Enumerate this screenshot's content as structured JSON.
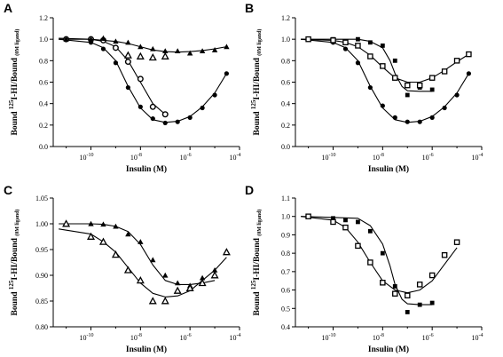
{
  "chart_data": [
    {
      "type": "scatter",
      "panel": "A",
      "xlabel": "Insulin (M)",
      "ylabel": {
        "pre": "Bound ",
        "sup": "125",
        "mid": "I-HI/Bound ",
        "sub": "(0M ligand)"
      },
      "x_scale": "log",
      "xlim": [
        3e-12,
        0.0001
      ],
      "ylim": [
        0.0,
        1.2
      ],
      "x_ticks": [
        {
          "value": 1e-10,
          "label": "10",
          "exp": "-10"
        },
        {
          "value": 1e-08,
          "label": "10",
          "exp": "-8"
        },
        {
          "value": 1e-06,
          "label": "10",
          "exp": "-6"
        },
        {
          "value": 0.0001,
          "label": "10",
          "exp": "-4"
        }
      ],
      "y_ticks": [
        "0.0",
        "0.2",
        "0.4",
        "0.6",
        "0.8",
        "1.0",
        "1.2"
      ],
      "series": [
        {
          "marker": "filled-circle",
          "x": [
            1e-11,
            1e-10,
            3.16e-10,
            1e-09,
            3.16e-09,
            1e-08,
            3.16e-08,
            1e-07,
            3.16e-07,
            1e-06,
            3.16e-06,
            1e-05,
            3e-05
          ],
          "y": [
            1.0,
            0.97,
            0.91,
            0.78,
            0.55,
            0.37,
            0.26,
            0.22,
            0.23,
            0.27,
            0.36,
            0.48,
            0.68
          ],
          "fit": [
            [
              5e-12,
              1.0
            ],
            [
              1e-10,
              0.97
            ],
            [
              3.16e-10,
              0.92
            ],
            [
              1e-09,
              0.8
            ],
            [
              3.16e-09,
              0.56
            ],
            [
              1e-08,
              0.36
            ],
            [
              3.16e-08,
              0.25
            ],
            [
              1e-07,
              0.225
            ],
            [
              3.16e-07,
              0.235
            ],
            [
              1e-06,
              0.28
            ],
            [
              3.16e-06,
              0.37
            ],
            [
              1e-05,
              0.5
            ],
            [
              3e-05,
              0.68
            ]
          ]
        },
        {
          "marker": "open-circle",
          "x": [
            1e-11,
            1e-10,
            3.16e-10,
            1e-09,
            3.16e-09,
            1e-08,
            3.16e-08,
            1e-07
          ],
          "y": [
            1.0,
            1.0,
            0.99,
            0.92,
            0.79,
            0.63,
            0.37,
            0.3
          ],
          "fit": [
            [
              5e-12,
              1.0
            ],
            [
              1e-10,
              1.0
            ],
            [
              3.16e-10,
              0.98
            ],
            [
              1e-09,
              0.93
            ],
            [
              3.16e-09,
              0.8
            ],
            [
              1e-08,
              0.6
            ],
            [
              3.16e-08,
              0.4
            ],
            [
              1e-07,
              0.3
            ]
          ]
        },
        {
          "marker": "filled-triangle",
          "x": [
            1e-11,
            1e-10,
            3.16e-10,
            1e-09,
            3.16e-09,
            1e-08,
            3.16e-08,
            1e-07,
            3.16e-07,
            1e-06,
            3.16e-06,
            1e-05,
            3e-05
          ],
          "y": [
            1.0,
            1.0,
            1.01,
            0.98,
            0.97,
            0.93,
            0.91,
            0.89,
            0.89,
            0.87,
            0.89,
            0.9,
            0.93
          ],
          "fit": [
            [
              5e-12,
              1.01
            ],
            [
              1e-10,
              1.0
            ],
            [
              3.16e-10,
              0.99
            ],
            [
              1e-09,
              0.98
            ],
            [
              3.16e-09,
              0.96
            ],
            [
              1e-08,
              0.93
            ],
            [
              3.16e-08,
              0.9
            ],
            [
              1e-07,
              0.885
            ],
            [
              3.16e-07,
              0.88
            ],
            [
              1e-06,
              0.885
            ],
            [
              3.16e-06,
              0.895
            ],
            [
              1e-05,
              0.91
            ],
            [
              3e-05,
              0.93
            ]
          ]
        },
        {
          "marker": "open-triangle",
          "x": [
            3.16e-09,
            1e-08,
            3.16e-08,
            1e-07
          ],
          "y": [
            0.85,
            0.84,
            0.83,
            0.84
          ],
          "fit": null
        }
      ]
    },
    {
      "type": "scatter",
      "panel": "B",
      "xlabel": "Insulin (M)",
      "ylabel": {
        "pre": "Bound ",
        "sup": "125",
        "mid": "I-HI/Bound ",
        "sub": "(0M ligand)"
      },
      "x_scale": "log",
      "xlim": [
        3e-12,
        0.0001
      ],
      "ylim": [
        0.0,
        1.2
      ],
      "x_ticks": [
        {
          "value": 1e-10,
          "label": "10",
          "exp": "-10"
        },
        {
          "value": 1e-08,
          "label": "10",
          "exp": "-8"
        },
        {
          "value": 1e-06,
          "label": "10",
          "exp": "-6"
        },
        {
          "value": 0.0001,
          "label": "10",
          "exp": "-4"
        }
      ],
      "y_ticks": [
        "0.0",
        "0.2",
        "0.4",
        "0.6",
        "0.8",
        "1.0",
        "1.2"
      ],
      "series": [
        {
          "marker": "filled-circle",
          "x": [
            1e-11,
            1e-10,
            3.16e-10,
            1e-09,
            3.16e-09,
            1e-08,
            3.16e-08,
            1e-07,
            3.16e-07,
            1e-06,
            3.16e-06,
            1e-05,
            3e-05
          ],
          "y": [
            1.0,
            0.97,
            0.91,
            0.78,
            0.55,
            0.38,
            0.27,
            0.23,
            0.23,
            0.27,
            0.36,
            0.48,
            0.68
          ],
          "fit": [
            [
              5e-12,
              1.0
            ],
            [
              1e-10,
              0.97
            ],
            [
              3.16e-10,
              0.92
            ],
            [
              1e-09,
              0.8
            ],
            [
              3.16e-09,
              0.56
            ],
            [
              1e-08,
              0.36
            ],
            [
              3.16e-08,
              0.25
            ],
            [
              1e-07,
              0.225
            ],
            [
              3.16e-07,
              0.235
            ],
            [
              1e-06,
              0.28
            ],
            [
              3.16e-06,
              0.37
            ],
            [
              1e-05,
              0.5
            ],
            [
              3e-05,
              0.68
            ]
          ]
        },
        {
          "marker": "filled-square",
          "x": [
            1e-11,
            1e-10,
            1e-09,
            3.16e-09,
            1e-08,
            3.16e-08,
            1e-07,
            3.16e-07,
            1e-06
          ],
          "y": [
            1.0,
            1.0,
            1.0,
            0.97,
            0.94,
            0.8,
            0.48,
            0.55,
            0.53
          ],
          "fit": [
            [
              5e-12,
              1.0
            ],
            [
              1e-09,
              1.0
            ],
            [
              3.16e-09,
              0.98
            ],
            [
              1e-08,
              0.92
            ],
            [
              2e-08,
              0.8
            ],
            [
              3.16e-08,
              0.68
            ],
            [
              6e-08,
              0.56
            ],
            [
              1e-07,
              0.52
            ],
            [
              3.16e-07,
              0.515
            ],
            [
              1e-06,
              0.515
            ]
          ]
        },
        {
          "marker": "open-square",
          "x": [
            1e-11,
            1e-10,
            3.16e-10,
            1e-09,
            3.16e-09,
            1e-08,
            3.16e-08,
            1e-07,
            3.16e-07,
            1e-06,
            3.16e-06,
            1e-05,
            3e-05
          ],
          "y": [
            1.0,
            0.99,
            0.97,
            0.94,
            0.84,
            0.75,
            0.64,
            0.57,
            0.57,
            0.64,
            0.7,
            0.8,
            0.86
          ],
          "fit": [
            [
              5e-12,
              1.0
            ],
            [
              1e-10,
              0.99
            ],
            [
              3.16e-10,
              0.97
            ],
            [
              1e-09,
              0.93
            ],
            [
              3.16e-09,
              0.85
            ],
            [
              1e-08,
              0.74
            ],
            [
              3.16e-08,
              0.64
            ],
            [
              1e-07,
              0.6
            ],
            [
              3.16e-07,
              0.6
            ],
            [
              1e-06,
              0.64
            ],
            [
              3.16e-06,
              0.71
            ],
            [
              1e-05,
              0.79
            ],
            [
              3e-05,
              0.86
            ]
          ]
        }
      ]
    },
    {
      "type": "scatter",
      "panel": "C",
      "xlabel": "Insulin (M)",
      "ylabel": {
        "pre": "Bound ",
        "sup": "125",
        "mid": "I-HI/Bound ",
        "sub": "(0M ligand)"
      },
      "x_scale": "log",
      "xlim": [
        3e-12,
        0.0001
      ],
      "ylim": [
        0.8,
        1.05
      ],
      "x_ticks": [
        {
          "value": 1e-10,
          "label": "10",
          "exp": "-10"
        },
        {
          "value": 1e-08,
          "label": "10",
          "exp": "-8"
        },
        {
          "value": 1e-06,
          "label": "10",
          "exp": "-6"
        },
        {
          "value": 0.0001,
          "label": "10",
          "exp": "-4"
        }
      ],
      "y_ticks": [
        "0.80",
        "0.85",
        "0.90",
        "0.95",
        "1.00",
        "1.05"
      ],
      "series": [
        {
          "marker": "filled-triangle",
          "x": [
            1e-11,
            1e-10,
            3.16e-10,
            1e-09,
            3.16e-09,
            1e-08,
            3.16e-08,
            1e-07,
            3.16e-07,
            1e-06,
            3.16e-06,
            1e-05
          ],
          "y": [
            1.0,
            1.0,
            0.999,
            0.995,
            0.98,
            0.965,
            0.93,
            0.9,
            0.885,
            0.88,
            0.895,
            0.91
          ],
          "fit": [
            [
              5e-12,
              1.0
            ],
            [
              1e-10,
              1.0
            ],
            [
              3.16e-10,
              0.999
            ],
            [
              1e-09,
              0.995
            ],
            [
              3.16e-09,
              0.985
            ],
            [
              1e-08,
              0.96
            ],
            [
              3.16e-08,
              0.92
            ],
            [
              1e-07,
              0.89
            ],
            [
              3.16e-07,
              0.882
            ],
            [
              1e-06,
              0.882
            ],
            [
              3.16e-06,
              0.885
            ],
            [
              1e-05,
              0.89
            ]
          ]
        },
        {
          "marker": "open-triangle",
          "x": [
            1e-11,
            1e-10,
            3.16e-10,
            1e-09,
            3.16e-09,
            1e-08,
            3.16e-08,
            1e-07,
            3.16e-07,
            1e-06,
            3.16e-06,
            1e-05,
            3e-05
          ],
          "y": [
            1.0,
            0.975,
            0.965,
            0.94,
            0.91,
            0.89,
            0.85,
            0.85,
            0.87,
            0.875,
            0.885,
            0.9,
            0.945
          ],
          "fit": [
            [
              5e-12,
              0.99
            ],
            [
              1e-10,
              0.98
            ],
            [
              3.16e-10,
              0.965
            ],
            [
              1e-09,
              0.945
            ],
            [
              3.16e-09,
              0.915
            ],
            [
              1e-08,
              0.885
            ],
            [
              3.16e-08,
              0.865
            ],
            [
              1e-07,
              0.858
            ],
            [
              3.16e-07,
              0.86
            ],
            [
              1e-06,
              0.87
            ],
            [
              3.16e-06,
              0.89
            ],
            [
              1e-05,
              0.91
            ],
            [
              3e-05,
              0.935
            ]
          ]
        }
      ]
    },
    {
      "type": "scatter",
      "panel": "D",
      "xlabel": "Insulin (M)",
      "ylabel": {
        "pre": "Bound ",
        "sup": "125",
        "mid": "I-HI/Bound ",
        "sub": "(0M ligand)"
      },
      "x_scale": "log",
      "xlim": [
        3e-12,
        0.0001
      ],
      "ylim": [
        0.4,
        1.1
      ],
      "x_ticks": [
        {
          "value": 1e-10,
          "label": "10",
          "exp": "-10"
        },
        {
          "value": 1e-08,
          "label": "10",
          "exp": "-8"
        },
        {
          "value": 1e-06,
          "label": "10",
          "exp": "-6"
        },
        {
          "value": 0.0001,
          "label": "10",
          "exp": "-4"
        }
      ],
      "y_ticks": [
        "0.4",
        "0.5",
        "0.6",
        "0.7",
        "0.8",
        "0.9",
        "1.0",
        "1.1"
      ],
      "series": [
        {
          "marker": "filled-square",
          "x": [
            1e-11,
            1e-10,
            3.16e-10,
            1e-09,
            3.16e-09,
            1e-08,
            3.16e-08,
            1e-07,
            3.16e-07,
            1e-06
          ],
          "y": [
            1.0,
            0.99,
            0.98,
            0.97,
            0.92,
            0.8,
            0.62,
            0.48,
            0.52,
            0.53
          ],
          "fit": [
            [
              5e-12,
              1.0
            ],
            [
              1e-09,
              0.99
            ],
            [
              3.16e-09,
              0.95
            ],
            [
              1e-08,
              0.85
            ],
            [
              2e-08,
              0.73
            ],
            [
              3.16e-08,
              0.63
            ],
            [
              6e-08,
              0.55
            ],
            [
              1e-07,
              0.525
            ],
            [
              3.16e-07,
              0.52
            ],
            [
              1e-06,
              0.52
            ]
          ]
        },
        {
          "marker": "open-square",
          "x": [
            1e-11,
            1e-10,
            3.16e-10,
            1e-09,
            3.16e-09,
            1e-08,
            3.16e-08,
            1e-07,
            3.16e-07,
            1e-06,
            3.16e-06,
            1e-05
          ],
          "y": [
            1.0,
            0.97,
            0.94,
            0.84,
            0.75,
            0.64,
            0.58,
            0.57,
            0.63,
            0.68,
            0.79,
            0.86
          ],
          "fit": [
            [
              5e-12,
              1.0
            ],
            [
              1e-10,
              0.98
            ],
            [
              3.16e-10,
              0.94
            ],
            [
              1e-09,
              0.86
            ],
            [
              3.16e-09,
              0.75
            ],
            [
              1e-08,
              0.65
            ],
            [
              3.16e-08,
              0.6
            ],
            [
              1e-07,
              0.585
            ],
            [
              3.16e-07,
              0.6
            ],
            [
              1e-06,
              0.65
            ],
            [
              3.16e-06,
              0.74
            ],
            [
              1e-05,
              0.83
            ]
          ]
        }
      ]
    }
  ]
}
